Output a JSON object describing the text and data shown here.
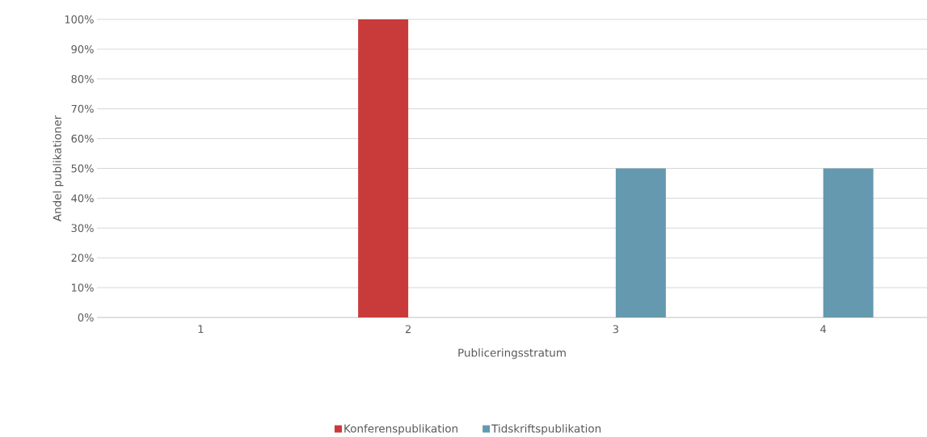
{
  "chart_data": {
    "type": "bar",
    "xlabel": "Publiceringsstratum",
    "ylabel": "Andel publikationer",
    "categories": [
      "1",
      "2",
      "3",
      "4"
    ],
    "series": [
      {
        "name": "Konferenspublikation",
        "color": "#c83b3a",
        "values": [
          0,
          100,
          0,
          0
        ]
      },
      {
        "name": "Tidskriftspublikation",
        "color": "#6499b0",
        "values": [
          0,
          0,
          50,
          50
        ]
      }
    ],
    "ylim": [
      0,
      100
    ],
    "yticks": [
      {
        "value": 0,
        "label": "0%"
      },
      {
        "value": 10,
        "label": "10%"
      },
      {
        "value": 20,
        "label": "20%"
      },
      {
        "value": 30,
        "label": "30%"
      },
      {
        "value": 40,
        "label": "40%"
      },
      {
        "value": 50,
        "label": "50%"
      },
      {
        "value": 60,
        "label": "60%"
      },
      {
        "value": 70,
        "label": "70%"
      },
      {
        "value": 80,
        "label": "80%"
      },
      {
        "value": 90,
        "label": "90%"
      },
      {
        "value": 100,
        "label": "100%"
      }
    ],
    "grid": "y",
    "legend": "bottom"
  }
}
